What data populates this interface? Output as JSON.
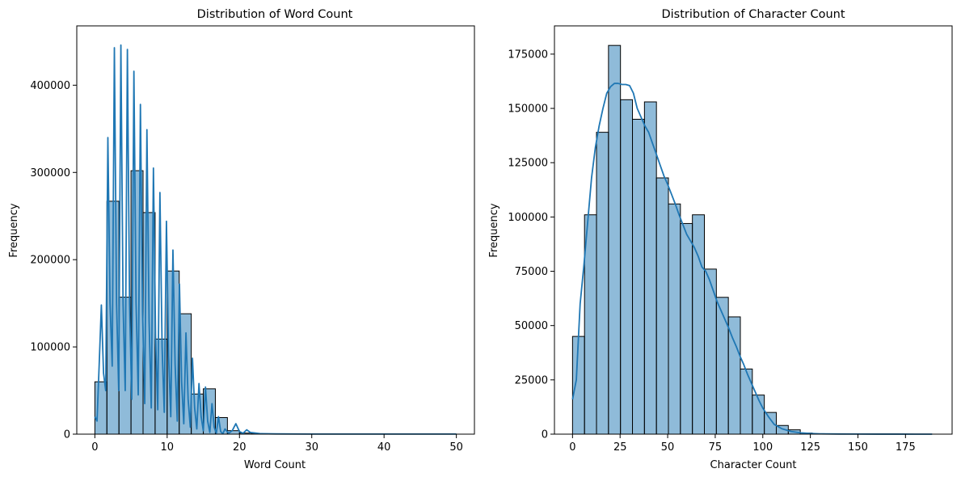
{
  "chart_data": [
    {
      "type": "bar",
      "title": "Distribution of Word Count",
      "xlabel": "Word Count",
      "ylabel": "Frequency",
      "xlim": [
        -2.5,
        52.5
      ],
      "ylim": [
        0,
        468000
      ],
      "xticks": [
        0,
        10,
        20,
        30,
        40,
        50
      ],
      "yticks": [
        0,
        100000,
        200000,
        300000,
        400000
      ],
      "bar_color": "#1f77b4",
      "bins": {
        "start": 0,
        "width": 1.6667,
        "values": [
          60000,
          267000,
          157000,
          302000,
          254000,
          109000,
          187000,
          138000,
          46000,
          52000,
          19000,
          4000,
          1200,
          400,
          150,
          60,
          30,
          10,
          5,
          3,
          2,
          1,
          1,
          0,
          0,
          0,
          0,
          0,
          0,
          1
        ]
      },
      "kde": {
        "x": [
          0,
          0.3,
          0.6,
          0.9,
          1.2,
          1.5,
          1.8,
          2.1,
          2.4,
          2.7,
          3.0,
          3.3,
          3.6,
          3.9,
          4.2,
          4.5,
          4.8,
          5.1,
          5.4,
          5.7,
          6.0,
          6.3,
          6.6,
          6.9,
          7.2,
          7.5,
          7.8,
          8.1,
          8.4,
          8.7,
          9.0,
          9.3,
          9.6,
          9.9,
          10.2,
          10.5,
          10.8,
          11.1,
          11.4,
          11.7,
          12.0,
          12.3,
          12.6,
          12.9,
          13.2,
          13.5,
          13.8,
          14.1,
          14.4,
          14.7,
          15.0,
          15.3,
          15.6,
          15.9,
          16.2,
          16.5,
          16.8,
          17.1,
          17.4,
          17.7,
          18.0,
          18.5,
          19.0,
          19.5,
          20.0,
          20.5,
          21.0,
          21.5,
          22.0,
          23.0,
          25.0,
          30.0,
          35.0,
          40.0,
          45.0,
          50.0
        ],
        "y": [
          20000,
          15000,
          80000,
          148000,
          70000,
          50000,
          340000,
          150000,
          78000,
          443000,
          150000,
          50000,
          446000,
          150000,
          50000,
          441000,
          150000,
          40000,
          416000,
          150000,
          45000,
          378000,
          140000,
          35000,
          349000,
          130000,
          30000,
          305000,
          110000,
          28000,
          277000,
          100000,
          25000,
          244000,
          90000,
          20000,
          211000,
          80000,
          15000,
          172000,
          60000,
          12000,
          116000,
          40000,
          8000,
          87000,
          30000,
          6000,
          58000,
          20000,
          4000,
          54000,
          15000,
          2000,
          35000,
          8000,
          1000,
          20000,
          3000,
          500,
          6000,
          1000,
          4000,
          12000,
          3000,
          1000,
          5000,
          2000,
          1500,
          500,
          300,
          100,
          100,
          100,
          100,
          100
        ]
      }
    },
    {
      "type": "bar",
      "title": "Distribution of Character Count",
      "xlabel": "Character Count",
      "ylabel": "Frequency",
      "xlim": [
        -9.5,
        199.5
      ],
      "ylim": [
        0,
        188000
      ],
      "xticks": [
        0,
        25,
        50,
        75,
        100,
        125,
        150,
        175
      ],
      "yticks": [
        0,
        25000,
        50000,
        75000,
        100000,
        125000,
        150000,
        175000
      ],
      "bar_color": "#1f77b4",
      "bins": {
        "start": 0,
        "width": 6.3,
        "values": [
          45000,
          101000,
          139000,
          179000,
          154000,
          145000,
          153000,
          118000,
          106000,
          97000,
          101000,
          76000,
          63000,
          54000,
          30000,
          18000,
          10000,
          4000,
          2000,
          500,
          200,
          100,
          50,
          30,
          20,
          10,
          5,
          3,
          2,
          1
        ]
      },
      "kde": {
        "x": [
          0,
          2,
          4,
          6,
          8,
          10,
          12,
          14,
          16,
          18,
          20,
          22,
          24,
          26,
          28,
          30,
          32,
          34,
          36,
          38,
          40,
          42,
          44,
          46,
          48,
          50,
          52,
          54,
          56,
          58,
          60,
          62,
          64,
          66,
          68,
          70,
          72,
          74,
          76,
          78,
          80,
          82,
          84,
          86,
          88,
          90,
          92,
          94,
          96,
          98,
          100,
          103,
          106,
          110,
          115,
          120,
          125,
          130,
          140,
          150,
          160,
          170,
          180,
          189
        ],
        "y": [
          16000,
          25000,
          60000,
          78000,
          98000,
          118000,
          132000,
          142000,
          150000,
          157000,
          160000,
          161500,
          161500,
          161000,
          161000,
          160500,
          157000,
          150000,
          146000,
          142000,
          139000,
          134000,
          129000,
          124000,
          119000,
          115000,
          110500,
          106000,
          101000,
          96500,
          92000,
          89000,
          86000,
          82000,
          77000,
          75000,
          71000,
          66000,
          61000,
          57000,
          53000,
          49000,
          44500,
          40500,
          36000,
          32000,
          27500,
          23500,
          19500,
          15500,
          12000,
          8000,
          4500,
          2500,
          1200,
          600,
          300,
          150,
          80,
          50,
          30,
          20,
          10,
          5
        ]
      }
    }
  ]
}
